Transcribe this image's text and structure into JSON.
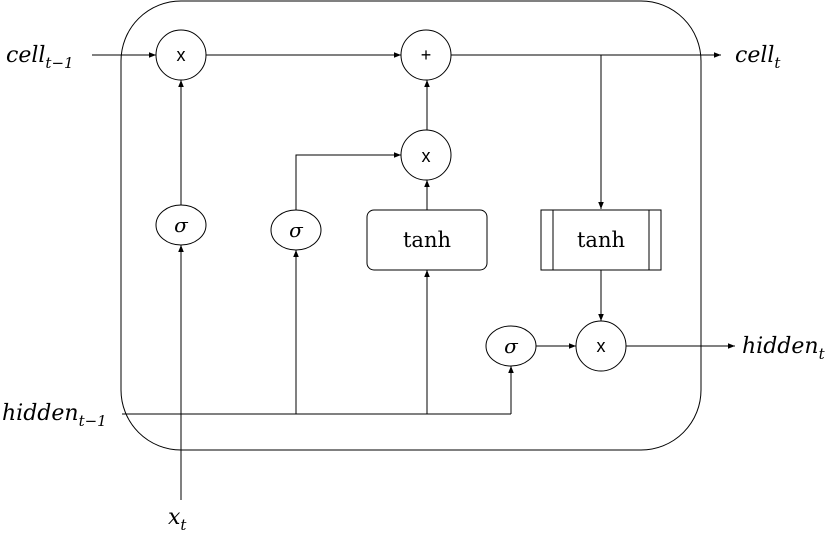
{
  "labels": {
    "cell_prev_main": "cell",
    "cell_prev_sub": "t−1",
    "cell_next_main": "cell",
    "cell_next_sub": "t",
    "hidden_prev_main": "hidden",
    "hidden_prev_sub": "t−1",
    "hidden_next_main": "hidden",
    "hidden_next_sub": "t",
    "input_main": "x",
    "input_sub": "t"
  },
  "operators": {
    "multiply": "x",
    "add": "+"
  },
  "gates": {
    "sigma": "σ",
    "tanh": "tanh"
  }
}
